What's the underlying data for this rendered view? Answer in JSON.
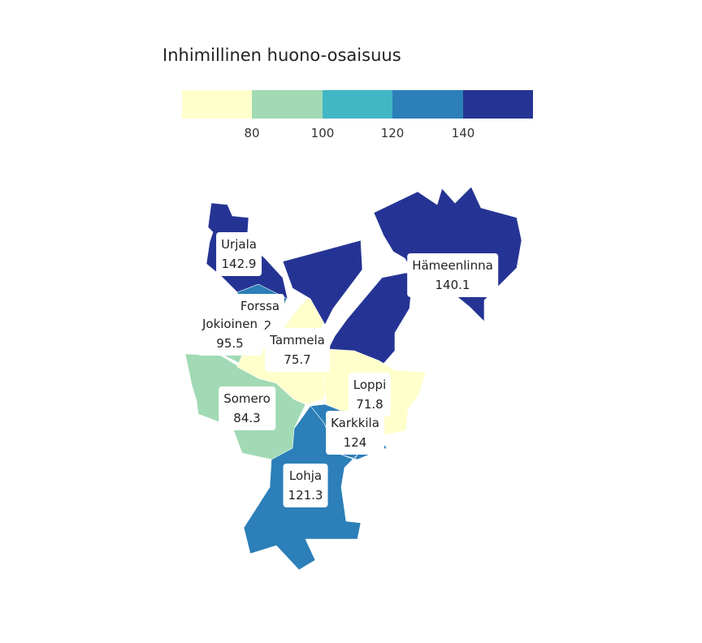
{
  "legend": {
    "title": "Inhimillinen huono-osaisuus",
    "colors": [
      "#ffffcc",
      "#a1dab4",
      "#41b6c4",
      "#2c7fb8",
      "#253494"
    ],
    "ticks": [
      "80",
      "100",
      "120",
      "140"
    ]
  },
  "municipalities": [
    {
      "name": "Urjala",
      "value": "142.9",
      "color": "#253494"
    },
    {
      "name": "Hämeenlinna",
      "value": "140.1",
      "color": "#253494"
    },
    {
      "name": "Forssa",
      "value": "1..2",
      "color": "#2c7fb8"
    },
    {
      "name": "Jokioinen",
      "value": "95.5",
      "color": "#a1dab4"
    },
    {
      "name": "Tammela",
      "value": "75.7",
      "color": "#ffffcc"
    },
    {
      "name": "Somero",
      "value": "84.3",
      "color": "#a1dab4"
    },
    {
      "name": "Loppi",
      "value": "71.8",
      "color": "#ffffcc"
    },
    {
      "name": "Karkkila",
      "value": "124",
      "color": "#2c7fb8"
    },
    {
      "name": "Lohja",
      "value": "121.3",
      "color": "#2c7fb8"
    }
  ]
}
